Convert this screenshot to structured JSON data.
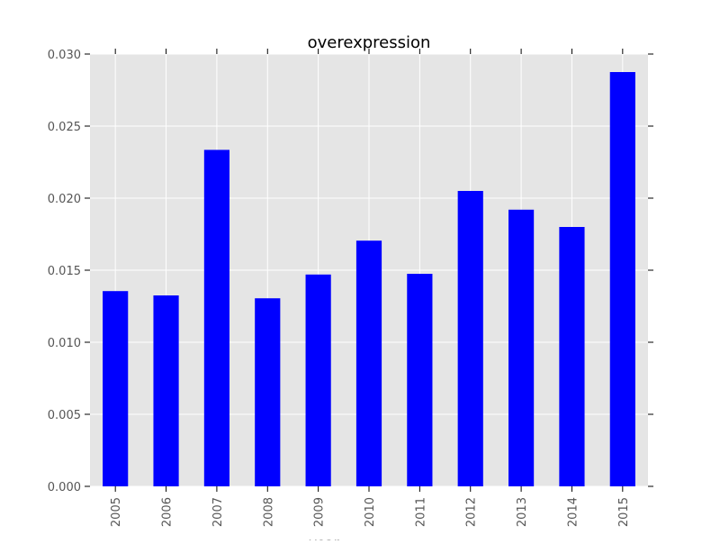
{
  "chart_data": {
    "type": "bar",
    "title": "overexpression",
    "xlabel": "year",
    "ylabel": "",
    "categories": [
      "2005",
      "2006",
      "2007",
      "2008",
      "2009",
      "2010",
      "2011",
      "2012",
      "2013",
      "2014",
      "2015"
    ],
    "series": [
      {
        "values": [
          0.01355,
          0.01325,
          0.02335,
          0.01305,
          0.0147,
          0.01705,
          0.01475,
          0.0205,
          0.0192,
          0.018,
          0.02875
        ],
        "color": "#0000ff"
      }
    ],
    "ylim": [
      0,
      0.03
    ],
    "yticks": [
      "0.000",
      "0.005",
      "0.010",
      "0.015",
      "0.020",
      "0.025",
      "0.030"
    ],
    "grid": true,
    "legend": "none",
    "colors": {
      "background": "#e5e5e5",
      "grid": "#ffffff",
      "bar": "#0000ff",
      "text": "#555555"
    }
  }
}
